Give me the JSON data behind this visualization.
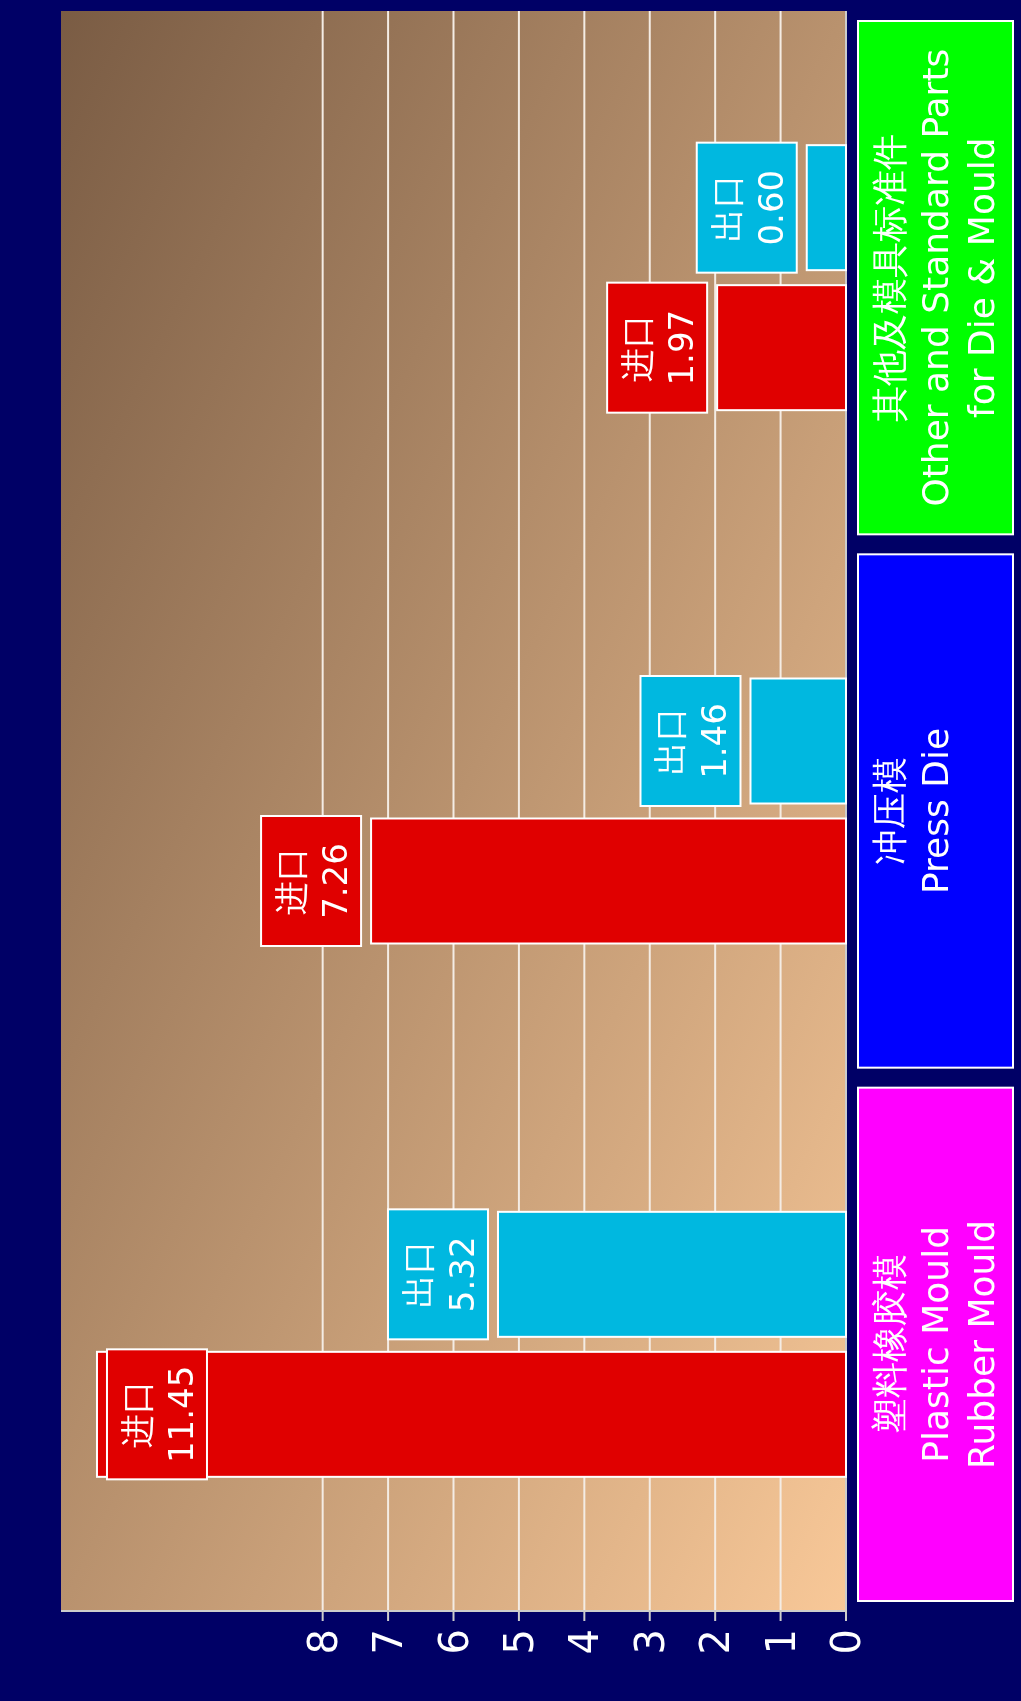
{
  "chart_data": {
    "type": "bar",
    "orientation": "horizontal",
    "categories": [
      "其他及模具标准件\nOther and Standard Parts\nfor Die & Mould",
      "冲压模\nPress Die",
      "塑料橡胶模\nPlastic Mould\nRubber Mould"
    ],
    "series": [
      {
        "name": "进口",
        "color": "#e00000",
        "values": [
          1.97,
          7.26,
          11.45
        ],
        "value_labels": [
          "1.97",
          "7.26",
          "11.45"
        ]
      },
      {
        "name": "出口",
        "color": "#00b8e0",
        "values": [
          0.6,
          1.46,
          5.32
        ],
        "value_labels": [
          "0.60",
          "1.46",
          "5.32"
        ]
      }
    ],
    "xlim": [
      12,
      0
    ],
    "xticks": [
      0,
      1,
      2,
      3,
      4,
      5,
      6,
      7,
      8
    ],
    "grid": "x"
  }
}
